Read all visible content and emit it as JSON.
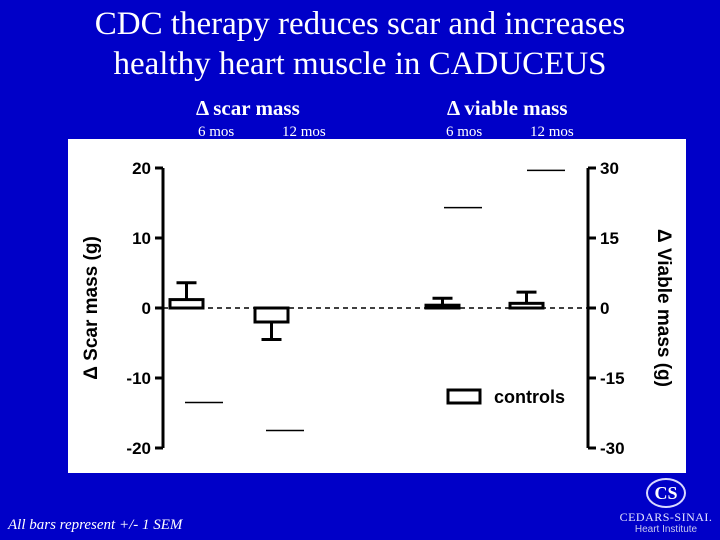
{
  "slide": {
    "title_line1": "CDC therapy reduces scar and increases",
    "title_line2": "healthy heart muscle in CADUCEUS",
    "footnote": "All bars represent +/- 1 SEM",
    "logo_mark": "CS",
    "logo_name": "CEDARS-SINAI.",
    "logo_sub": "Heart Institute",
    "colors": {
      "background": "#0000c8",
      "text": "#ffffff",
      "plot_bg": "#ffffff",
      "ink": "#000000"
    }
  },
  "chart_data": {
    "type": "bar",
    "groups": [
      {
        "label": "Δ scar mass",
        "periods": [
          "6 mos",
          "12 mos"
        ]
      },
      {
        "label": "Δ viable mass",
        "periods": [
          "6 mos",
          "12 mos"
        ]
      }
    ],
    "y_left": {
      "label": "Δ Scar mass (g)",
      "ylim": [
        -20,
        20
      ],
      "ticks": [
        "20",
        "10",
        "0",
        "-10",
        "-20"
      ]
    },
    "y_right": {
      "label": "Δ Viable mass (g)",
      "ylim": [
        -30,
        30
      ],
      "ticks": [
        "30",
        "15",
        "0",
        "-15",
        "-30"
      ]
    },
    "series": [
      {
        "name": "controls",
        "values": [
          1.2,
          -2.0,
          0.6,
          1.0
        ],
        "sem": [
          2.4,
          2.5,
          1.5,
          2.4
        ]
      }
    ],
    "treated_cdc": {
      "values": [
        -13.5,
        -17.5,
        21.5,
        29.5
      ],
      "units": [
        "left",
        "left",
        "right",
        "right"
      ]
    },
    "legend": {
      "entries": [
        "controls"
      ],
      "position": "bottom-right"
    },
    "zero_line": "dashed",
    "grid": false
  }
}
